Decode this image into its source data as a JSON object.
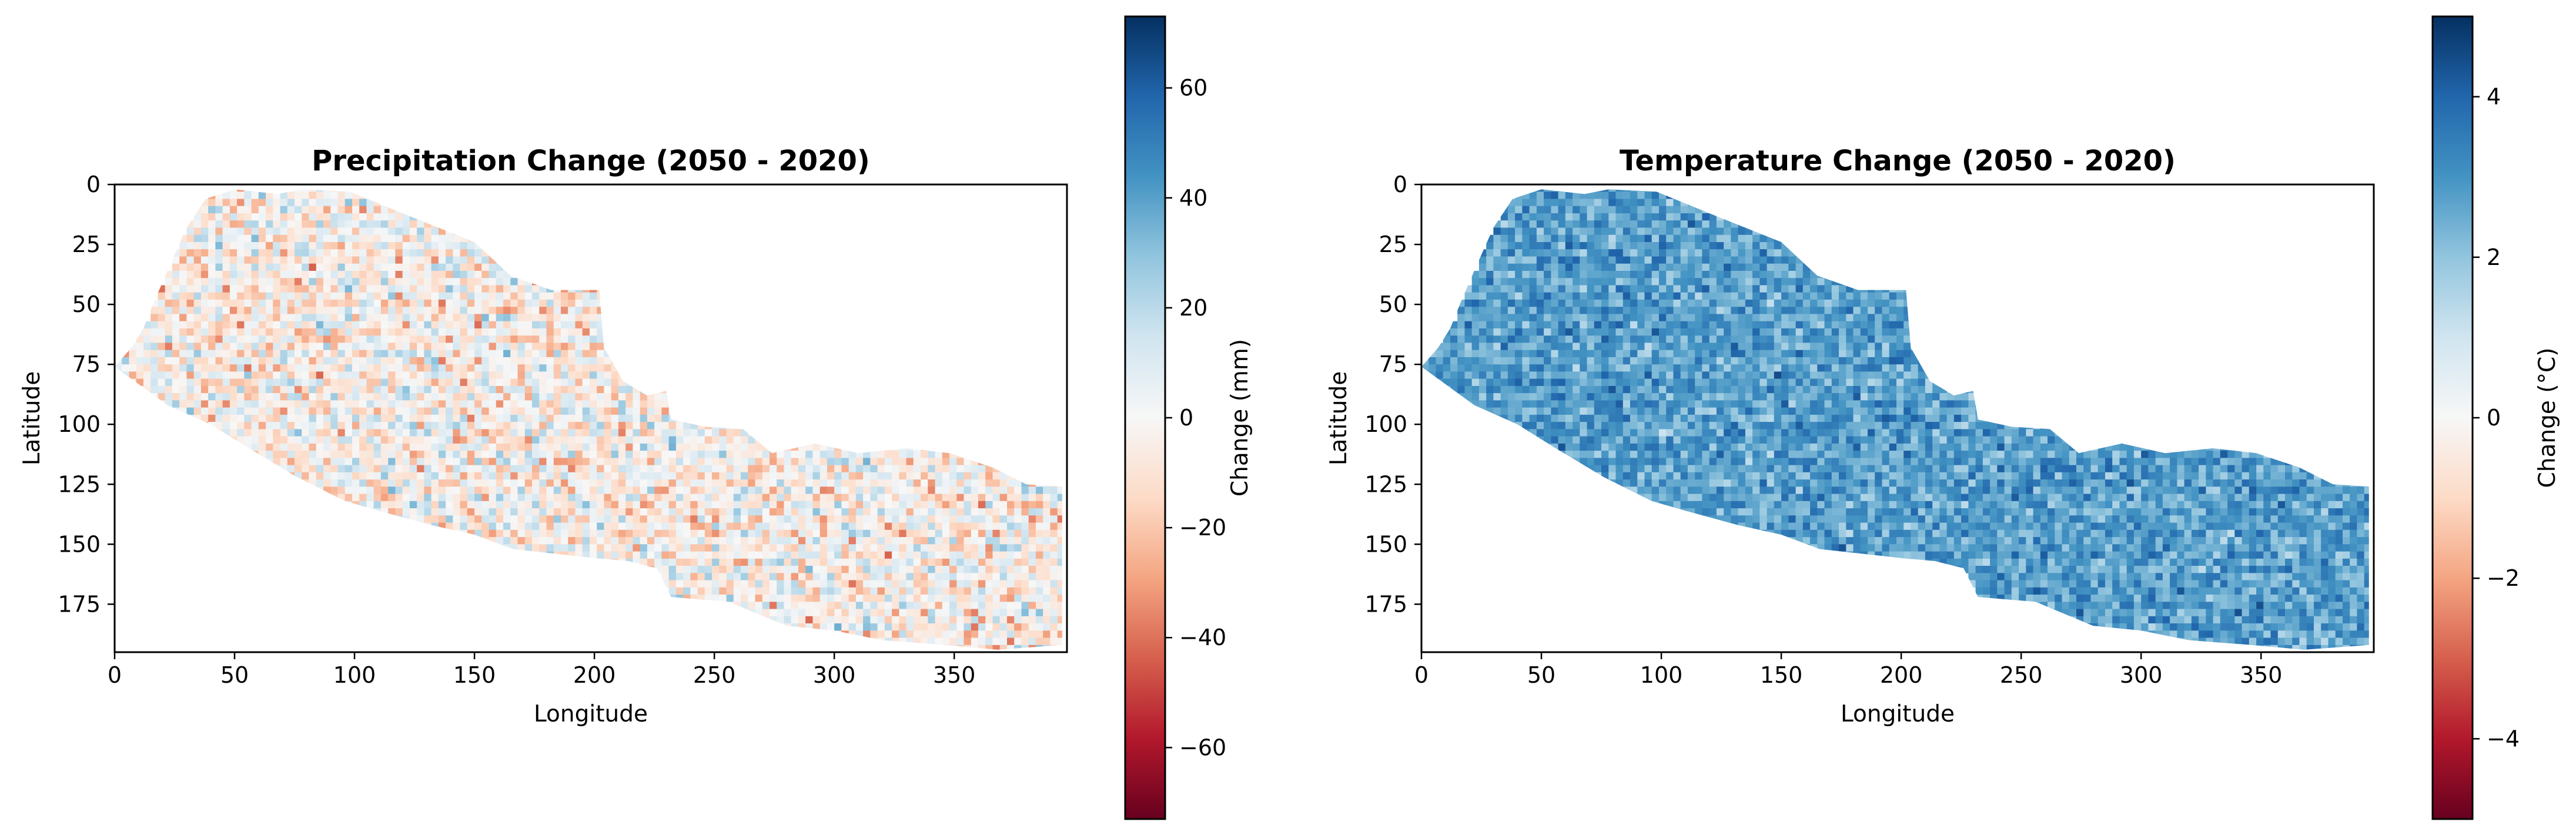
{
  "chart_data": [
    {
      "type": "heatmap",
      "title": "Precipitation Change (2050 - 2020)",
      "xlabel": "Longitude",
      "ylabel": "Latitude",
      "xlim": [
        0,
        397
      ],
      "ylim": [
        195,
        0
      ],
      "xticks": [
        0,
        50,
        100,
        150,
        200,
        250,
        300,
        350
      ],
      "yticks": [
        0,
        25,
        50,
        75,
        100,
        125,
        150,
        175
      ],
      "colormap": "RdBu",
      "colorbar": {
        "label": "Change (mm)",
        "range": [
          -73,
          73
        ],
        "ticks": [
          -60,
          -40,
          -20,
          0,
          20,
          40,
          60
        ],
        "tick_labels": [
          "−60",
          "−40",
          "−20",
          "0",
          "20",
          "40",
          "60"
        ]
      },
      "field": {
        "mean": -3,
        "spread": 22
      },
      "region_upper_edge": [
        [
          0,
          76
        ],
        [
          7,
          68
        ],
        [
          12,
          60
        ],
        [
          16,
          50
        ],
        [
          22,
          36
        ],
        [
          30,
          18
        ],
        [
          38,
          6
        ],
        [
          50,
          2
        ],
        [
          68,
          4
        ],
        [
          78,
          2
        ],
        [
          98,
          3
        ],
        [
          120,
          12
        ],
        [
          150,
          24
        ],
        [
          165,
          38
        ],
        [
          182,
          44
        ],
        [
          202,
          44
        ],
        [
          204,
          68
        ],
        [
          212,
          82
        ],
        [
          222,
          88
        ],
        [
          230,
          86
        ],
        [
          232,
          98
        ],
        [
          246,
          101
        ],
        [
          262,
          102
        ],
        [
          274,
          112
        ],
        [
          292,
          108
        ],
        [
          310,
          112
        ],
        [
          330,
          110
        ],
        [
          348,
          112
        ],
        [
          366,
          118
        ],
        [
          380,
          125
        ],
        [
          395,
          126
        ]
      ],
      "region_lower_edge": [
        [
          0,
          76
        ],
        [
          22,
          92
        ],
        [
          40,
          100
        ],
        [
          56,
          110
        ],
        [
          76,
          122
        ],
        [
          96,
          132
        ],
        [
          110,
          136
        ],
        [
          132,
          142
        ],
        [
          150,
          146
        ],
        [
          166,
          152
        ],
        [
          184,
          154
        ],
        [
          202,
          156
        ],
        [
          214,
          157
        ],
        [
          226,
          160
        ],
        [
          232,
          172
        ],
        [
          256,
          174
        ],
        [
          280,
          184
        ],
        [
          300,
          186
        ],
        [
          320,
          190
        ],
        [
          346,
          192
        ],
        [
          368,
          194
        ],
        [
          395,
          192
        ]
      ]
    },
    {
      "type": "heatmap",
      "title": "Temperature Change (2050 - 2020)",
      "xlabel": "Longitude",
      "ylabel": "Latitude",
      "xlim": [
        0,
        397
      ],
      "ylim": [
        195,
        0
      ],
      "xticks": [
        0,
        50,
        100,
        150,
        200,
        250,
        300,
        350
      ],
      "yticks": [
        0,
        25,
        50,
        75,
        100,
        125,
        150,
        175
      ],
      "colormap": "RdBu",
      "colorbar": {
        "label": "Change (°C)",
        "range": [
          -5,
          5
        ],
        "ticks": [
          -4,
          -2,
          0,
          2,
          4
        ],
        "tick_labels": [
          "−4",
          "−2",
          "0",
          "2",
          "4"
        ]
      },
      "field": {
        "mean": 2.8,
        "spread": 0.9
      },
      "region_upper_edge": [
        [
          0,
          76
        ],
        [
          7,
          68
        ],
        [
          12,
          60
        ],
        [
          16,
          50
        ],
        [
          22,
          36
        ],
        [
          30,
          18
        ],
        [
          38,
          6
        ],
        [
          50,
          2
        ],
        [
          68,
          4
        ],
        [
          78,
          2
        ],
        [
          98,
          3
        ],
        [
          120,
          12
        ],
        [
          150,
          24
        ],
        [
          165,
          38
        ],
        [
          182,
          44
        ],
        [
          202,
          44
        ],
        [
          204,
          68
        ],
        [
          212,
          82
        ],
        [
          222,
          88
        ],
        [
          230,
          86
        ],
        [
          232,
          98
        ],
        [
          246,
          101
        ],
        [
          262,
          102
        ],
        [
          274,
          112
        ],
        [
          292,
          108
        ],
        [
          310,
          112
        ],
        [
          330,
          110
        ],
        [
          348,
          112
        ],
        [
          366,
          118
        ],
        [
          380,
          125
        ],
        [
          395,
          126
        ]
      ],
      "region_lower_edge": [
        [
          0,
          76
        ],
        [
          22,
          92
        ],
        [
          40,
          100
        ],
        [
          56,
          110
        ],
        [
          76,
          122
        ],
        [
          96,
          132
        ],
        [
          110,
          136
        ],
        [
          132,
          142
        ],
        [
          150,
          146
        ],
        [
          166,
          152
        ],
        [
          184,
          154
        ],
        [
          202,
          156
        ],
        [
          214,
          157
        ],
        [
          226,
          160
        ],
        [
          232,
          172
        ],
        [
          256,
          174
        ],
        [
          280,
          184
        ],
        [
          300,
          186
        ],
        [
          320,
          190
        ],
        [
          346,
          192
        ],
        [
          368,
          194
        ],
        [
          395,
          192
        ]
      ]
    }
  ]
}
